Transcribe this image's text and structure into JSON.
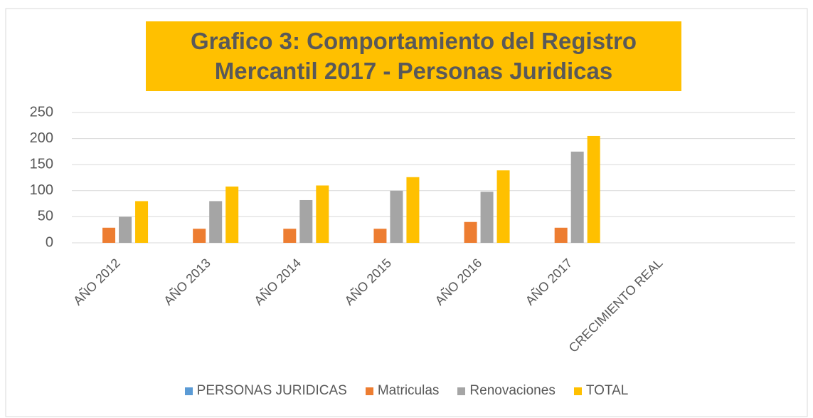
{
  "chart_data": {
    "type": "bar",
    "title": "Grafico 3: Comportamiento del Registro Mercantil 2017 - Personas Juridicas",
    "categories": [
      "AÑO 2012",
      "AÑO 2013",
      "AÑO 2014",
      "AÑO 2015",
      "AÑO 2016",
      "AÑO 2017",
      "CRECIMIENTO REAL",
      null
    ],
    "series": [
      {
        "name": "PERSONAS JURIDICAS",
        "color": "#5b9bd5",
        "values": [
          null,
          null,
          null,
          null,
          null,
          null,
          null,
          null
        ]
      },
      {
        "name": "Matriculas",
        "color": "#ed7d31",
        "values": [
          29,
          27,
          27,
          27,
          40,
          29,
          null,
          null
        ]
      },
      {
        "name": "Renovaciones",
        "color": "#a5a5a5",
        "values": [
          50,
          80,
          82,
          100,
          98,
          175,
          null,
          null
        ]
      },
      {
        "name": "TOTAL",
        "color": "#ffc000",
        "values": [
          80,
          108,
          110,
          126,
          139,
          205,
          null,
          null
        ]
      }
    ],
    "ylim": [
      0,
      250
    ],
    "yticks": [
      0,
      50,
      100,
      150,
      200,
      250
    ],
    "grid": true,
    "legend": "bottom"
  }
}
